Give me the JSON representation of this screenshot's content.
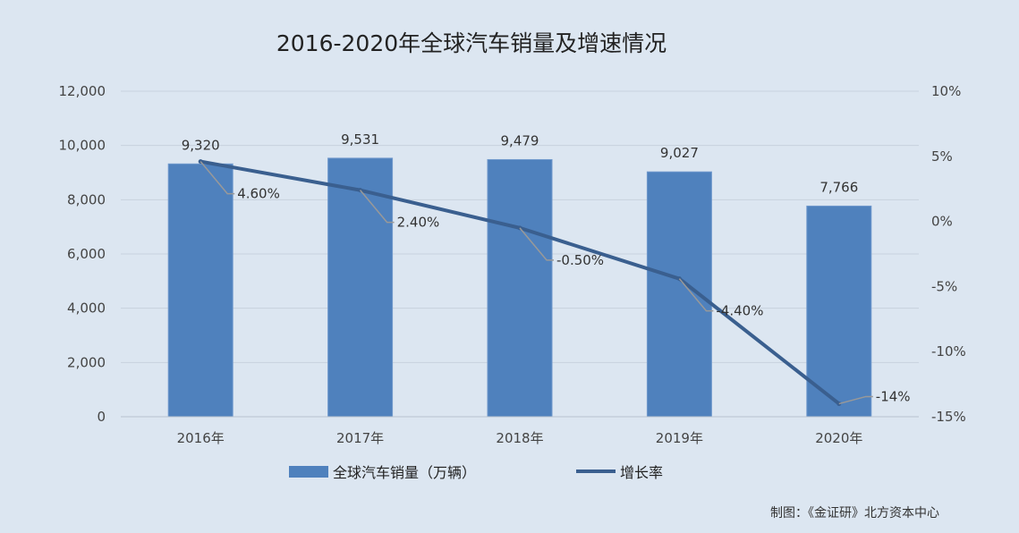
{
  "chart_data": {
    "type": "bar+line",
    "title": "2016-2020年全球汽车销量及增速情况",
    "categories": [
      "2016年",
      "2017年",
      "2018年",
      "2019年",
      "2020年"
    ],
    "series": [
      {
        "name": "全球汽车销量（万辆）",
        "type": "bar",
        "axis": "left",
        "values": [
          9320,
          9531,
          9479,
          9027,
          7766
        ],
        "labels": [
          "9,320",
          "9,531",
          "9,479",
          "9,027",
          "7,766"
        ],
        "color": "#4f81bd"
      },
      {
        "name": "增长率",
        "type": "line",
        "axis": "right",
        "values": [
          4.6,
          2.4,
          -0.5,
          -4.4,
          -14
        ],
        "labels": [
          "4.60%",
          "2.40%",
          "-0.50%",
          "-4.40%",
          "-14%"
        ],
        "color": "#3a5f8f"
      }
    ],
    "ylim": [
      0,
      12000
    ],
    "yticks": [
      0,
      2000,
      4000,
      6000,
      8000,
      10000,
      12000
    ],
    "ytick_labels": [
      "0",
      "2,000",
      "4,000",
      "6,000",
      "8,000",
      "10,000",
      "12,000"
    ],
    "y2lim": [
      -15,
      10
    ],
    "y2ticks": [
      -15,
      -10,
      -5,
      0,
      5,
      10
    ],
    "y2tick_labels": [
      "-15%",
      "-10%",
      "-5%",
      "0%",
      "5%",
      "10%"
    ],
    "grid": true,
    "legend_position": "bottom",
    "source": "制图：《金证研》北方资本中心"
  }
}
